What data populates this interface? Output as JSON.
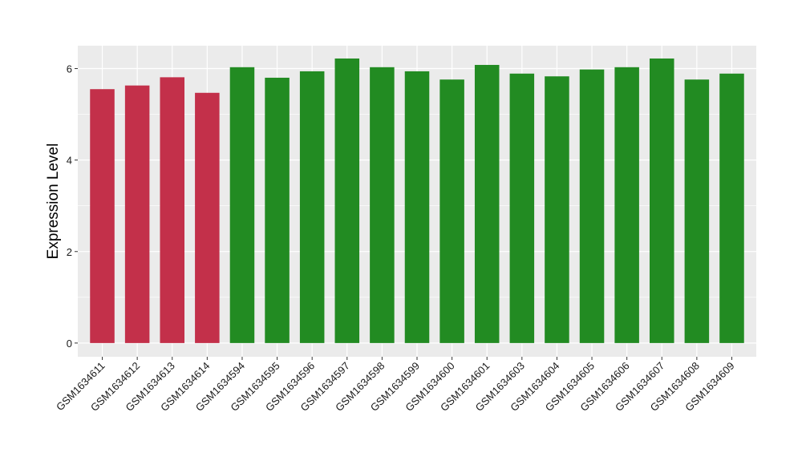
{
  "chart_data": {
    "type": "bar",
    "title": "",
    "xlabel": "",
    "ylabel": "Expression Level",
    "ylim": [
      -0.3,
      6.5
    ],
    "yticks": [
      0,
      2,
      4,
      6
    ],
    "grid": true,
    "legend": "none",
    "categories": [
      "GSM1634611",
      "GSM1634612",
      "GSM1634613",
      "GSM1634614",
      "GSM1634594",
      "GSM1634595",
      "GSM1634596",
      "GSM1634597",
      "GSM1634598",
      "GSM1634599",
      "GSM1634600",
      "GSM1634601",
      "GSM1634603",
      "GSM1634604",
      "GSM1634605",
      "GSM1634606",
      "GSM1634607",
      "GSM1634608",
      "GSM1634609"
    ],
    "values": [
      5.55,
      5.63,
      5.81,
      5.47,
      6.03,
      5.8,
      5.94,
      6.22,
      6.03,
      5.94,
      5.76,
      6.08,
      5.89,
      5.83,
      5.98,
      6.03,
      6.22,
      5.76,
      5.89
    ],
    "bar_colors": [
      "#C3304A",
      "#C3304A",
      "#C3304A",
      "#C3304A",
      "#228B22",
      "#228B22",
      "#228B22",
      "#228B22",
      "#228B22",
      "#228B22",
      "#228B22",
      "#228B22",
      "#228B22",
      "#228B22",
      "#228B22",
      "#228B22",
      "#228B22",
      "#228B22",
      "#228B22"
    ],
    "panel_background": "#EBEBEB",
    "grid_color": "#FFFFFF"
  }
}
